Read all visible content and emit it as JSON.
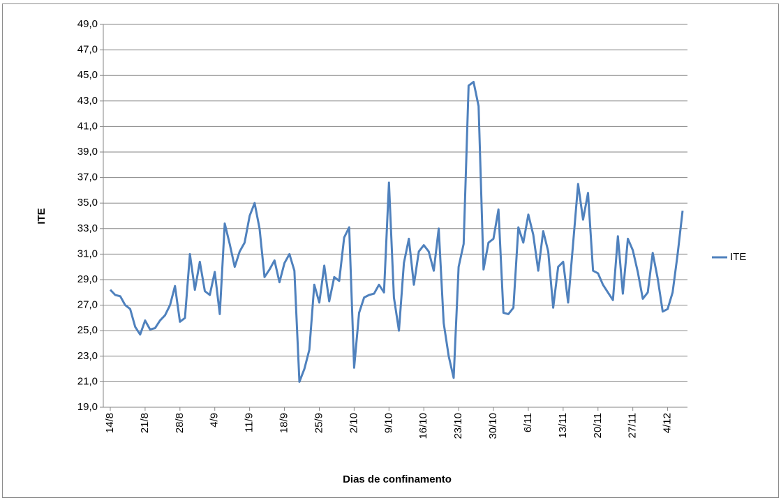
{
  "chart_data": {
    "type": "line",
    "x_label": "Dias de confinamento",
    "y_label": "ITE",
    "categories": [
      "14/8",
      null,
      null,
      null,
      null,
      null,
      null,
      "21/8",
      null,
      null,
      null,
      null,
      null,
      null,
      "28/8",
      null,
      null,
      null,
      null,
      null,
      null,
      "4/9",
      null,
      null,
      null,
      null,
      null,
      null,
      "11/9",
      null,
      null,
      null,
      null,
      null,
      null,
      "18/9",
      null,
      null,
      null,
      null,
      null,
      null,
      "25/9",
      null,
      null,
      null,
      null,
      null,
      null,
      "2/10",
      null,
      null,
      null,
      null,
      null,
      null,
      "9/10",
      null,
      null,
      null,
      null,
      null,
      null,
      "16/10",
      null,
      null,
      null,
      null,
      null,
      null,
      "23/10",
      null,
      null,
      null,
      null,
      null,
      null,
      "30/10",
      null,
      null,
      null,
      null,
      null,
      null,
      "6/11",
      null,
      null,
      null,
      null,
      null,
      null,
      "13/11",
      null,
      null,
      null,
      null,
      null,
      null,
      "20/11",
      null,
      null,
      null,
      null,
      null,
      null,
      "27/11",
      null,
      null,
      null,
      null,
      null,
      null,
      "4/12",
      null,
      null,
      null
    ],
    "series": [
      {
        "name": "ITE",
        "color": "#4f81bd",
        "values": [
          28.2,
          27.8,
          27.7,
          27.0,
          26.7,
          25.3,
          24.7,
          25.8,
          25.1,
          25.2,
          25.8,
          26.2,
          27.0,
          28.5,
          25.7,
          26.0,
          31.0,
          28.2,
          30.4,
          28.1,
          27.8,
          29.6,
          26.3,
          33.4,
          31.8,
          30.0,
          31.2,
          31.9,
          34.0,
          35.0,
          33.0,
          29.2,
          29.8,
          30.5,
          28.8,
          30.3,
          31.0,
          29.7,
          21.0,
          22.0,
          23.5,
          28.6,
          27.2,
          30.1,
          27.3,
          29.2,
          28.9,
          32.3,
          33.1,
          22.1,
          26.4,
          27.6,
          27.8,
          27.9,
          28.6,
          28.0,
          36.6,
          27.6,
          25.0,
          30.3,
          32.2,
          28.6,
          31.2,
          31.7,
          31.2,
          29.7,
          33.0,
          25.6,
          23.0,
          21.3,
          30.0,
          31.8,
          44.2,
          44.5,
          42.6,
          29.8,
          31.9,
          32.2,
          34.5,
          26.4,
          26.3,
          26.8,
          33.1,
          31.9,
          34.1,
          32.5,
          29.7,
          32.8,
          31.2,
          26.8,
          30.0,
          30.4,
          27.2,
          31.8,
          36.5,
          33.7,
          35.8,
          29.7,
          29.5,
          28.6,
          28.0,
          27.4,
          32.4,
          27.9,
          32.2,
          31.3,
          29.6,
          27.5,
          28.0,
          31.1,
          29.1,
          26.5,
          26.7,
          28.0,
          31.0,
          34.4
        ]
      }
    ],
    "ylim": [
      19,
      49
    ],
    "yticks": [
      {
        "value": 19,
        "label": "19,0"
      },
      {
        "value": 21,
        "label": "21,0"
      },
      {
        "value": 23,
        "label": "23,0"
      },
      {
        "value": 25,
        "label": "25,0"
      },
      {
        "value": 27,
        "label": "27,0"
      },
      {
        "value": 29,
        "label": "29,0"
      },
      {
        "value": 31,
        "label": "31,0"
      },
      {
        "value": 33,
        "label": "33,0"
      },
      {
        "value": 35,
        "label": "35,0"
      },
      {
        "value": 37,
        "label": "37,0"
      },
      {
        "value": 39,
        "label": "39,0"
      },
      {
        "value": 41,
        "label": "41,0"
      },
      {
        "value": 43,
        "label": "43,0"
      },
      {
        "value": 45,
        "label": "45,0"
      },
      {
        "value": 47,
        "label": "47,0"
      },
      {
        "value": 49,
        "label": "49,0"
      }
    ],
    "grid": true,
    "legend": "right"
  }
}
